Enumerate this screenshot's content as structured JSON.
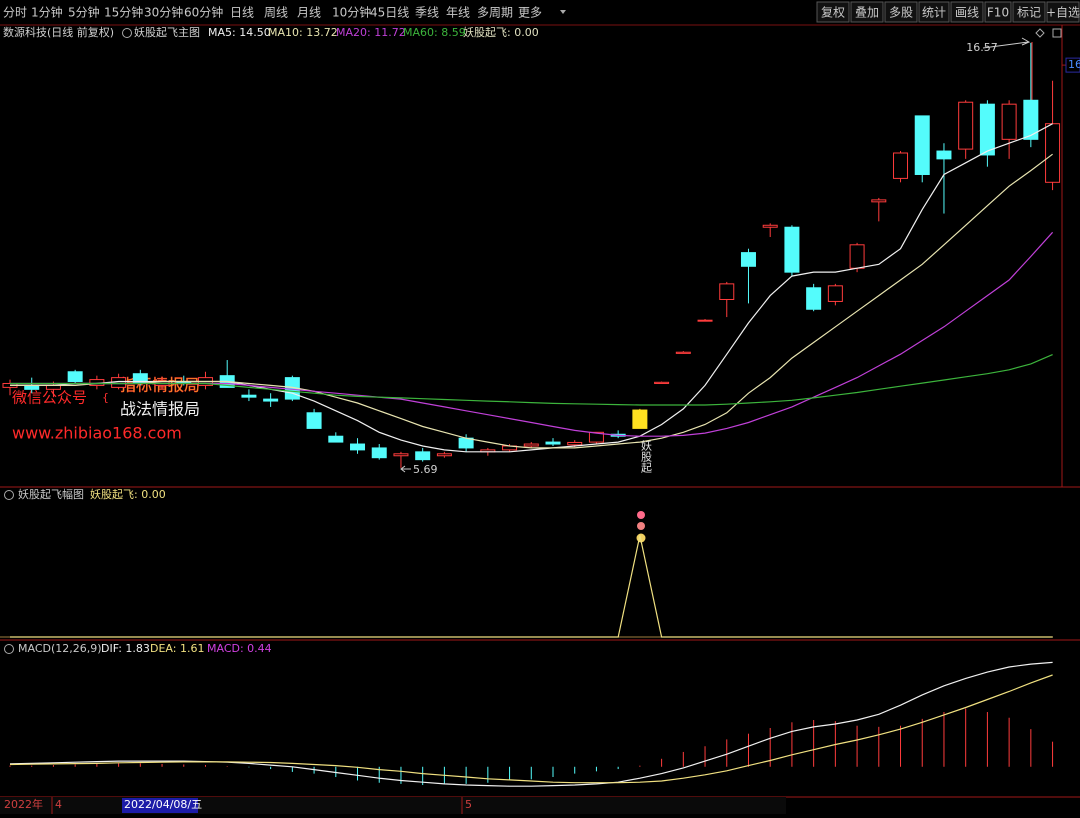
{
  "toolbar": {
    "periods": [
      "分时",
      "1分钟",
      "5分钟",
      "15分钟",
      "30分钟",
      "60分钟",
      "日线",
      "周线",
      "月线",
      "10分钟",
      "45日线",
      "季线",
      "年线",
      "多周期",
      "更多"
    ],
    "active": 6,
    "tools": [
      "复权",
      "叠加",
      "多股",
      "统计",
      "画线",
      "F10",
      "标记",
      "+自选"
    ]
  },
  "watermark": {
    "account": "微信公众号",
    "brand1": "指标情报局",
    "brand2": "战法情报局",
    "site": "www.zhibiao168.com"
  },
  "x_axis_labels": [
    "2022年",
    "4",
    "2022/04/08/五",
    "5"
  ],
  "chart_data": [
    {
      "type": "candlestick",
      "title": "数源科技(日线 前复权)",
      "subtitle": "妖股起飞主图",
      "indicator": "妖股起飞: 0.00",
      "up_color": "#ff3c3c",
      "down_color": "#54fcfc",
      "signal_color": "#ffe020",
      "ylim": [
        5.2,
        16.95
      ],
      "yticks": [
        16
      ],
      "high_label": 16.57,
      "low_label": 5.69,
      "signal_label": "妖股起",
      "open": [
        7.75,
        7.8,
        7.7,
        8.15,
        7.8,
        7.75,
        8.1,
        7.8,
        7.9,
        7.8,
        8.05,
        7.55,
        7.45,
        8.0,
        7.1,
        6.5,
        6.3,
        6.2,
        6.0,
        6.1,
        6.0,
        6.45,
        6.1,
        6.15,
        6.25,
        6.35,
        6.28,
        6.35,
        6.55,
        6.7,
        7.85,
        8.62,
        9.45,
        10.0,
        11.2,
        11.85,
        11.85,
        10.3,
        9.95,
        10.8,
        12.5,
        13.1,
        14.7,
        13.8,
        13.85,
        15.0,
        14.1,
        15.1,
        13.0
      ],
      "high": [
        7.95,
        8.0,
        7.9,
        8.2,
        8.05,
        8.1,
        8.2,
        8.0,
        8.05,
        8.15,
        8.45,
        7.7,
        7.6,
        8.05,
        7.2,
        6.6,
        6.45,
        6.3,
        6.1,
        6.2,
        6.1,
        6.55,
        6.2,
        6.3,
        6.35,
        6.45,
        6.4,
        6.6,
        6.65,
        7.2,
        7.9,
        8.68,
        9.5,
        10.45,
        11.3,
        11.95,
        11.9,
        10.4,
        10.4,
        11.45,
        12.6,
        13.8,
        14.7,
        14.0,
        15.1,
        15.1,
        15.1,
        16.57,
        15.6
      ],
      "low": [
        7.55,
        7.6,
        7.5,
        7.85,
        7.7,
        7.7,
        7.8,
        7.7,
        7.8,
        7.7,
        7.8,
        7.4,
        7.25,
        7.4,
        6.7,
        6.35,
        6.05,
        5.9,
        5.69,
        5.85,
        5.95,
        6.1,
        6.0,
        6.1,
        6.2,
        6.25,
        6.22,
        6.3,
        6.45,
        6.7,
        7.85,
        8.62,
        9.45,
        9.55,
        9.9,
        11.6,
        10.6,
        9.7,
        9.85,
        10.7,
        12.0,
        13.0,
        13.0,
        12.2,
        13.6,
        13.4,
        13.6,
        13.9,
        12.8
      ],
      "close": [
        7.85,
        7.7,
        7.8,
        7.9,
        7.95,
        8.0,
        7.85,
        7.9,
        7.85,
        8.0,
        7.75,
        7.5,
        7.4,
        7.45,
        6.7,
        6.35,
        6.15,
        5.95,
        6.05,
        5.9,
        6.05,
        6.2,
        6.15,
        6.25,
        6.3,
        6.3,
        6.34,
        6.6,
        6.5,
        7.17,
        7.88,
        8.65,
        9.47,
        10.4,
        10.85,
        11.9,
        10.7,
        9.75,
        10.35,
        11.4,
        12.55,
        13.75,
        13.2,
        13.6,
        15.05,
        13.7,
        15.0,
        14.1,
        14.5
      ],
      "series": [
        {
          "name": "MA5: 14.50",
          "color": "#f0f0f0",
          "values": [
            7.8,
            7.8,
            7.8,
            7.85,
            7.85,
            7.9,
            7.9,
            7.9,
            7.9,
            7.9,
            7.9,
            7.8,
            7.7,
            7.6,
            7.4,
            7.15,
            6.9,
            6.6,
            6.4,
            6.25,
            6.15,
            6.1,
            6.1,
            6.1,
            6.15,
            6.2,
            6.25,
            6.3,
            6.35,
            6.5,
            6.8,
            7.2,
            7.8,
            8.6,
            9.4,
            10.1,
            10.6,
            10.7,
            10.7,
            10.8,
            10.9,
            11.3,
            12.3,
            13.2,
            13.5,
            13.8,
            14.0,
            14.2,
            14.5
          ]
        },
        {
          "name": "MA10: 13.72",
          "color": "#e8e4b0",
          "values": [
            7.8,
            7.8,
            7.8,
            7.8,
            7.85,
            7.85,
            7.85,
            7.9,
            7.9,
            7.9,
            7.9,
            7.85,
            7.8,
            7.75,
            7.65,
            7.5,
            7.35,
            7.15,
            6.95,
            6.75,
            6.6,
            6.45,
            6.35,
            6.25,
            6.2,
            6.2,
            6.2,
            6.25,
            6.3,
            6.35,
            6.45,
            6.6,
            6.8,
            7.1,
            7.6,
            8.0,
            8.5,
            8.9,
            9.3,
            9.7,
            10.1,
            10.5,
            10.9,
            11.4,
            11.9,
            12.4,
            12.9,
            13.3,
            13.72
          ]
        },
        {
          "name": "MA20: 11.72",
          "color": "#c040d8",
          "values": [
            7.85,
            7.85,
            7.85,
            7.85,
            7.85,
            7.85,
            7.85,
            7.85,
            7.85,
            7.85,
            7.85,
            7.8,
            7.75,
            7.7,
            7.65,
            7.6,
            7.55,
            7.5,
            7.45,
            7.35,
            7.25,
            7.15,
            7.05,
            6.95,
            6.85,
            6.75,
            6.65,
            6.58,
            6.52,
            6.5,
            6.5,
            6.52,
            6.58,
            6.7,
            6.85,
            7.05,
            7.25,
            7.5,
            7.75,
            8.0,
            8.3,
            8.6,
            8.95,
            9.3,
            9.7,
            10.1,
            10.5,
            11.1,
            11.72
          ]
        },
        {
          "name": "MA60: 8.59",
          "color": "#3cb43c",
          "values": [
            7.85,
            7.85,
            7.85,
            7.85,
            7.85,
            7.85,
            7.85,
            7.85,
            7.85,
            7.85,
            7.8,
            7.75,
            7.7,
            7.65,
            7.6,
            7.55,
            7.52,
            7.5,
            7.48,
            7.46,
            7.44,
            7.42,
            7.4,
            7.38,
            7.36,
            7.34,
            7.33,
            7.32,
            7.31,
            7.3,
            7.3,
            7.3,
            7.3,
            7.32,
            7.35,
            7.38,
            7.42,
            7.48,
            7.55,
            7.62,
            7.7,
            7.78,
            7.86,
            7.94,
            8.02,
            8.1,
            8.2,
            8.35,
            8.59
          ]
        }
      ]
    },
    {
      "type": "line",
      "title": "妖股起飞幅图",
      "ylim": [
        0,
        1.3
      ],
      "series": [
        {
          "name": "妖股起飞: 0.00",
          "color": "#f0e080",
          "values": [
            0,
            0,
            0,
            0,
            0,
            0,
            0,
            0,
            0,
            0,
            0,
            0,
            0,
            0,
            0,
            0,
            0,
            0,
            0,
            0,
            0,
            0,
            0,
            0,
            0,
            0,
            0,
            0,
            0,
            1,
            0,
            0,
            0,
            0,
            0,
            0,
            0,
            0,
            0,
            0,
            0,
            0,
            0,
            0,
            0,
            0,
            0,
            0,
            0
          ]
        }
      ]
    },
    {
      "type": "combo",
      "title": "MACD(12,26,9)",
      "ylim": [
        -0.53,
        1.96
      ],
      "series": [
        {
          "name": "DIF: 1.83",
          "style": "line",
          "color": "#f0f0f0",
          "values": [
            0.05,
            0.06,
            0.07,
            0.08,
            0.09,
            0.1,
            0.1,
            0.1,
            0.1,
            0.09,
            0.08,
            0.06,
            0.03,
            0.0,
            -0.05,
            -0.1,
            -0.15,
            -0.2,
            -0.24,
            -0.27,
            -0.3,
            -0.32,
            -0.33,
            -0.34,
            -0.34,
            -0.33,
            -0.32,
            -0.3,
            -0.27,
            -0.2,
            -0.12,
            -0.02,
            0.1,
            0.22,
            0.36,
            0.5,
            0.62,
            0.7,
            0.75,
            0.82,
            0.92,
            1.08,
            1.26,
            1.42,
            1.55,
            1.66,
            1.75,
            1.8,
            1.83
          ]
        },
        {
          "name": "DEA: 1.61",
          "style": "line",
          "color": "#f0e080",
          "values": [
            0.04,
            0.045,
            0.05,
            0.055,
            0.06,
            0.07,
            0.075,
            0.08,
            0.085,
            0.085,
            0.085,
            0.08,
            0.075,
            0.06,
            0.04,
            0.02,
            -0.01,
            -0.05,
            -0.08,
            -0.12,
            -0.15,
            -0.18,
            -0.21,
            -0.23,
            -0.25,
            -0.27,
            -0.28,
            -0.28,
            -0.28,
            -0.27,
            -0.25,
            -0.2,
            -0.14,
            -0.07,
            0.02,
            0.11,
            0.21,
            0.3,
            0.39,
            0.47,
            0.56,
            0.66,
            0.78,
            0.91,
            1.04,
            1.18,
            1.32,
            1.47,
            1.61
          ]
        },
        {
          "name": "MACD: 0.44",
          "style": "bar",
          "color": "#ff3c3c",
          "negative_color": "#54fcfc",
          "legend_color": "#d040e0",
          "values": [
            0.02,
            0.02,
            0.03,
            0.04,
            0.05,
            0.06,
            0.06,
            0.05,
            0.04,
            0.03,
            0.01,
            -0.01,
            -0.04,
            -0.09,
            -0.12,
            -0.18,
            -0.24,
            -0.28,
            -0.3,
            -0.32,
            -0.3,
            -0.3,
            -0.28,
            -0.24,
            -0.22,
            -0.18,
            -0.12,
            -0.08,
            -0.04,
            0.02,
            0.14,
            0.26,
            0.36,
            0.48,
            0.58,
            0.68,
            0.78,
            0.82,
            0.8,
            0.72,
            0.7,
            0.72,
            0.84,
            0.96,
            1.02,
            0.96,
            0.86,
            0.66,
            0.44
          ]
        }
      ]
    }
  ]
}
